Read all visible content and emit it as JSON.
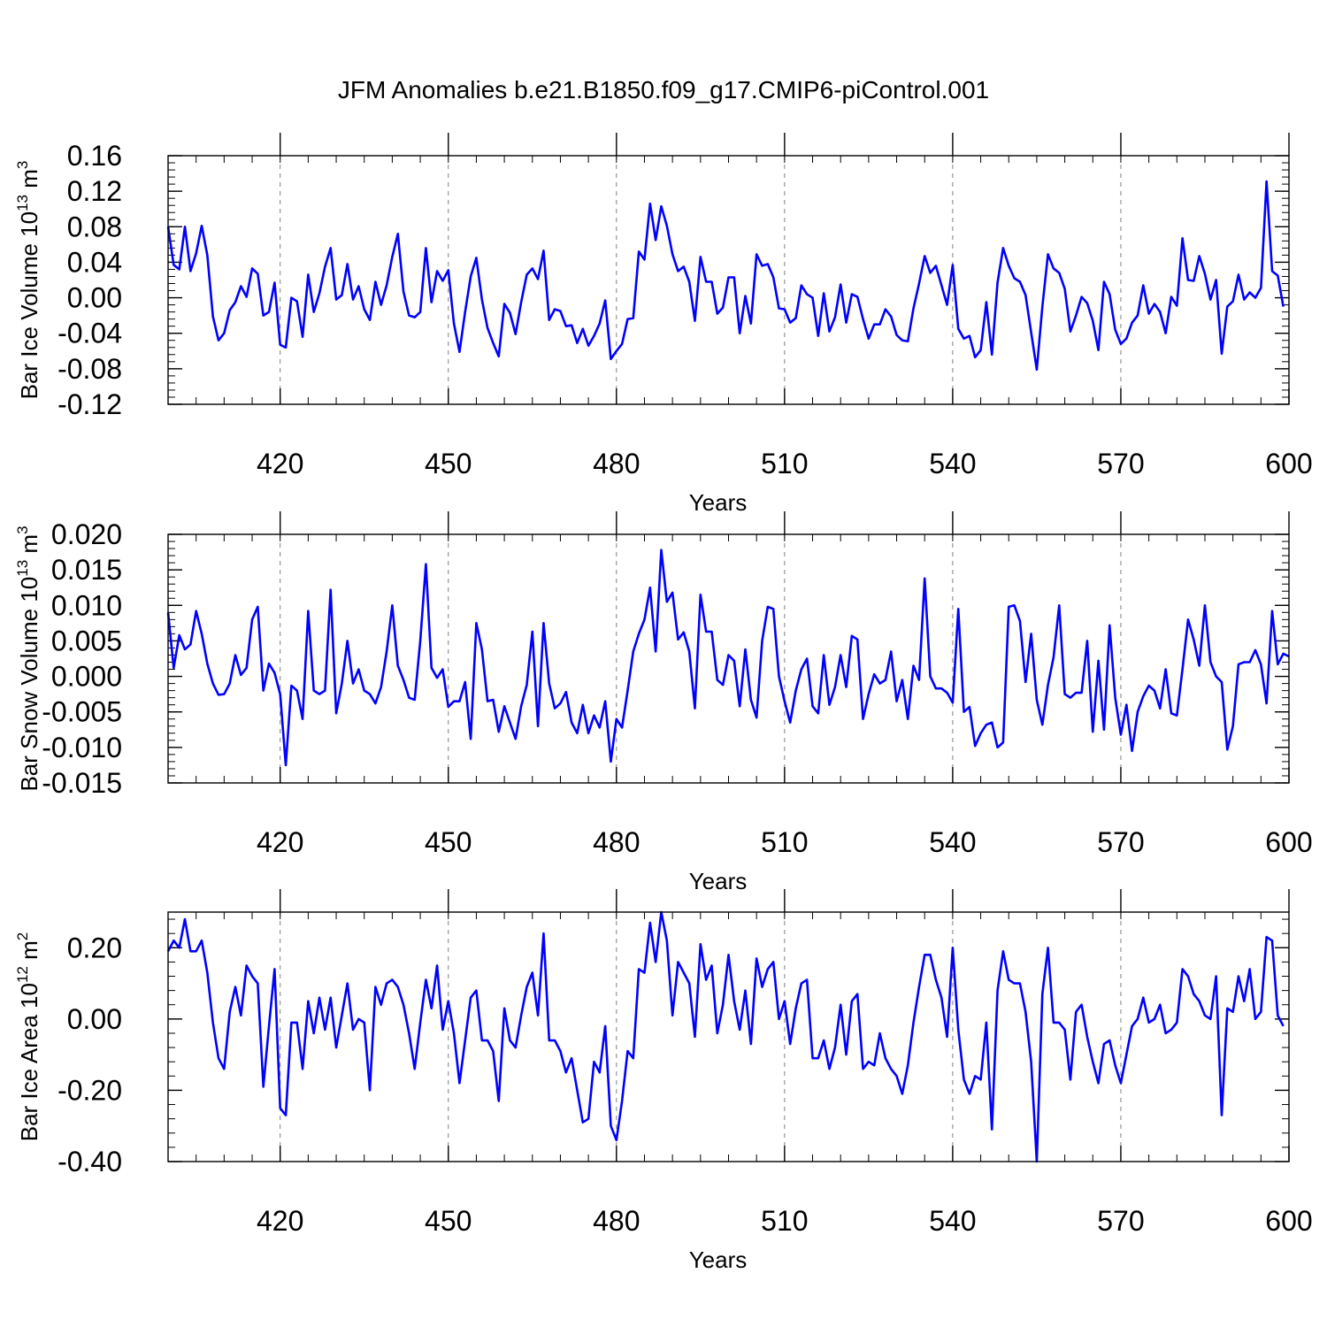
{
  "title": "JFM Anomalies b.e21.B1850.f09_g17.CMIP6-piControl.001",
  "colors": {
    "line": "#0000ff",
    "axis": "#000000",
    "grid": "#808080"
  },
  "chart_data": [
    {
      "type": "line",
      "ylabel_main": "Bar Ice Volume 10",
      "ylabel_exp": "13",
      "ylabel_unit": " m",
      "ylabel_unit_exp": "3",
      "xlabel": "Years",
      "xlim": [
        400,
        600
      ],
      "ylim": [
        -0.12,
        0.16
      ],
      "xticks": [
        420,
        450,
        480,
        510,
        540,
        570,
        600
      ],
      "xtick_labels": [
        "420",
        "450",
        "480",
        "510",
        "540",
        "570",
        "600"
      ],
      "yticks": [
        -0.12,
        -0.08,
        -0.04,
        0.0,
        0.04,
        0.08,
        0.12,
        0.16
      ],
      "ytick_labels": [
        "-0.12",
        "-0.08",
        "-0.04",
        "0.00",
        "0.04",
        "0.08",
        "0.12",
        "0.16"
      ],
      "grid": "vertical-dashed",
      "x_start": 400,
      "values": [
        0.08,
        0.037,
        0.032,
        0.08,
        0.03,
        0.05,
        0.081,
        0.048,
        -0.021,
        -0.048,
        -0.04,
        -0.014,
        -0.005,
        0.013,
        0.001,
        0.033,
        0.027,
        -0.02,
        -0.016,
        0.017,
        -0.053,
        -0.056,
        0.0,
        -0.004,
        -0.044,
        0.026,
        -0.016,
        0.005,
        0.035,
        0.056,
        -0.002,
        0.003,
        0.038,
        -0.002,
        0.013,
        -0.013,
        -0.025,
        0.018,
        -0.008,
        0.014,
        0.046,
        0.072,
        0.007,
        -0.02,
        -0.022,
        -0.016,
        0.056,
        -0.005,
        0.03,
        0.019,
        0.031,
        -0.029,
        -0.061,
        -0.016,
        0.024,
        0.045,
        -0.002,
        -0.034,
        -0.051,
        -0.066,
        -0.007,
        -0.017,
        -0.041,
        -0.005,
        0.026,
        0.033,
        0.021,
        0.053,
        -0.025,
        -0.013,
        -0.015,
        -0.032,
        -0.031,
        -0.051,
        -0.035,
        -0.054,
        -0.043,
        -0.029,
        -0.003,
        -0.069,
        -0.06,
        -0.052,
        -0.024,
        -0.023,
        0.052,
        0.043,
        0.106,
        0.065,
        0.103,
        0.081,
        0.049,
        0.03,
        0.035,
        0.018,
        -0.026,
        0.046,
        0.018,
        0.018,
        -0.018,
        -0.011,
        0.023,
        0.023,
        -0.04,
        0.002,
        -0.029,
        0.049,
        0.036,
        0.038,
        0.023,
        -0.012,
        -0.013,
        -0.028,
        -0.023,
        0.014,
        0.004,
        0.0,
        -0.043,
        0.005,
        -0.038,
        -0.022,
        0.015,
        -0.028,
        0.004,
        0.001,
        -0.024,
        -0.046,
        -0.03,
        -0.03,
        -0.013,
        -0.021,
        -0.042,
        -0.048,
        -0.049,
        -0.012,
        0.016,
        0.047,
        0.028,
        0.036,
        0.014,
        -0.008,
        0.037,
        -0.035,
        -0.046,
        -0.043,
        -0.067,
        -0.059,
        -0.005,
        -0.064,
        0.017,
        0.056,
        0.036,
        0.022,
        0.018,
        0.003,
        -0.039,
        -0.081,
        -0.01,
        0.049,
        0.033,
        0.028,
        0.01,
        -0.038,
        -0.02,
        0.001,
        -0.006,
        -0.026,
        -0.059,
        0.018,
        0.004,
        -0.036,
        -0.052,
        -0.046,
        -0.028,
        -0.02,
        0.014,
        -0.018,
        -0.007,
        -0.016,
        -0.04,
        0.001,
        -0.009,
        0.067,
        0.02,
        0.019,
        0.047,
        0.027,
        -0.002,
        0.02,
        -0.063,
        -0.01,
        -0.004,
        0.026,
        -0.002,
        0.006,
        0.0,
        0.011,
        0.131,
        0.03,
        0.025,
        -0.01
      ]
    },
    {
      "type": "line",
      "ylabel_main": "Bar Snow Volume 10",
      "ylabel_exp": "13",
      "ylabel_unit": " m",
      "ylabel_unit_exp": "3",
      "xlabel": "Years",
      "xlim": [
        400,
        600
      ],
      "ylim": [
        -0.015,
        0.02
      ],
      "xticks": [
        420,
        450,
        480,
        510,
        540,
        570,
        600
      ],
      "xtick_labels": [
        "420",
        "450",
        "480",
        "510",
        "540",
        "570",
        "600"
      ],
      "yticks": [
        -0.015,
        -0.01,
        -0.005,
        0.0,
        0.005,
        0.01,
        0.015,
        0.02
      ],
      "ytick_labels": [
        "-0.015",
        "-0.010",
        "-0.005",
        "0.000",
        "0.005",
        "0.010",
        "0.015",
        "0.020"
      ],
      "grid": "vertical-dashed",
      "x_start": 400,
      "values": [
        0.009,
        0.0012,
        0.0058,
        0.0038,
        0.0045,
        0.0092,
        0.006,
        0.0018,
        -0.001,
        -0.0026,
        -0.0025,
        -0.001,
        0.003,
        0.0002,
        0.0012,
        0.008,
        0.0098,
        -0.002,
        0.0018,
        0.0005,
        -0.0025,
        -0.0125,
        -0.0013,
        -0.002,
        -0.006,
        0.0092,
        -0.002,
        -0.0025,
        -0.002,
        0.0122,
        -0.0052,
        -0.001,
        0.005,
        -0.001,
        0.001,
        -0.002,
        -0.0025,
        -0.0038,
        -0.0015,
        0.0035,
        0.01,
        0.0015,
        -0.0005,
        -0.003,
        -0.0033,
        0.005,
        0.0158,
        0.0012,
        -0.0002,
        0.001,
        -0.0043,
        -0.0035,
        -0.0035,
        -0.0008,
        -0.0088,
        0.0075,
        0.0038,
        -0.0035,
        -0.0033,
        -0.0078,
        -0.0042,
        -0.0065,
        -0.0088,
        -0.0042,
        -0.0012,
        0.0063,
        -0.007,
        0.0075,
        -0.001,
        -0.0045,
        -0.0038,
        -0.0022,
        -0.0065,
        -0.008,
        -0.004,
        -0.008,
        -0.0055,
        -0.0072,
        -0.0035,
        -0.012,
        -0.006,
        -0.0072,
        -0.002,
        0.0035,
        0.006,
        0.008,
        0.0125,
        0.0035,
        0.0178,
        0.0105,
        0.0118,
        0.0052,
        0.0062,
        0.0035,
        -0.0045,
        0.0115,
        0.0063,
        0.0063,
        -0.0005,
        -0.0012,
        0.003,
        0.0022,
        -0.0042,
        0.0038,
        -0.0033,
        -0.0058,
        0.005,
        0.0098,
        0.0095,
        0.0,
        -0.0035,
        -0.0065,
        -0.002,
        0.001,
        0.0025,
        -0.0042,
        -0.0052,
        0.003,
        -0.004,
        -0.0015,
        0.003,
        -0.0015,
        0.0057,
        0.0052,
        -0.006,
        -0.0025,
        0.0003,
        -0.001,
        -0.0005,
        0.0035,
        -0.0035,
        -0.0005,
        -0.006,
        0.0015,
        -0.0005,
        0.0138,
        0.0,
        -0.0017,
        -0.0017,
        -0.0023,
        -0.0037,
        0.0095,
        -0.005,
        -0.0043,
        -0.0098,
        -0.008,
        -0.0068,
        -0.0065,
        -0.01,
        -0.0093,
        0.0098,
        0.01,
        0.0078,
        -0.0008,
        0.006,
        -0.0033,
        -0.0068,
        -0.0012,
        0.0027,
        0.01,
        -0.0025,
        -0.003,
        -0.0023,
        -0.0023,
        0.005,
        -0.0078,
        0.0022,
        -0.0075,
        0.0072,
        -0.003,
        -0.0082,
        -0.004,
        -0.0105,
        -0.005,
        -0.0028,
        -0.0013,
        -0.002,
        -0.0045,
        0.001,
        -0.0052,
        -0.0055,
        0.001,
        0.008,
        0.0052,
        0.0015,
        0.01,
        0.002,
        0.0,
        -0.0008,
        -0.0103,
        -0.007,
        0.0017,
        0.002,
        0.002,
        0.0037,
        0.0017,
        -0.0038,
        0.0092,
        0.0017,
        0.0032,
        0.0028
      ]
    },
    {
      "type": "line",
      "ylabel_main": "Bar Ice Area 10",
      "ylabel_exp": "12",
      "ylabel_unit": " m",
      "ylabel_unit_exp": "2",
      "xlabel": "Years",
      "xlim": [
        400,
        600
      ],
      "ylim": [
        -0.4,
        0.3
      ],
      "xticks": [
        420,
        450,
        480,
        510,
        540,
        570,
        600
      ],
      "xtick_labels": [
        "420",
        "450",
        "480",
        "510",
        "540",
        "570",
        "600"
      ],
      "yticks": [
        -0.4,
        -0.2,
        0.0,
        0.2
      ],
      "ytick_labels": [
        "-0.40",
        "-0.20",
        "0.00",
        "0.20"
      ],
      "grid": "vertical-dashed",
      "x_start": 400,
      "values": [
        0.19,
        0.22,
        0.2,
        0.28,
        0.19,
        0.19,
        0.22,
        0.13,
        -0.01,
        -0.11,
        -0.14,
        0.02,
        0.09,
        0.01,
        0.15,
        0.12,
        0.1,
        -0.19,
        -0.02,
        0.14,
        -0.25,
        -0.27,
        -0.01,
        -0.01,
        -0.14,
        0.05,
        -0.04,
        0.06,
        -0.03,
        0.06,
        -0.08,
        0.01,
        0.1,
        -0.03,
        0.0,
        -0.01,
        -0.2,
        0.09,
        0.04,
        0.1,
        0.11,
        0.09,
        0.04,
        -0.04,
        -0.14,
        -0.01,
        0.11,
        0.03,
        0.15,
        -0.03,
        0.05,
        -0.04,
        -0.18,
        -0.06,
        0.06,
        0.08,
        -0.06,
        -0.06,
        -0.09,
        -0.23,
        0.03,
        -0.06,
        -0.08,
        0.01,
        0.09,
        0.13,
        0.01,
        0.24,
        -0.06,
        -0.06,
        -0.09,
        -0.15,
        -0.11,
        -0.2,
        -0.29,
        -0.28,
        -0.12,
        -0.15,
        -0.02,
        -0.3,
        -0.34,
        -0.23,
        -0.09,
        -0.11,
        0.14,
        0.13,
        0.27,
        0.16,
        0.3,
        0.22,
        0.01,
        0.16,
        0.13,
        0.1,
        -0.05,
        0.21,
        0.11,
        0.15,
        -0.04,
        0.04,
        0.18,
        0.05,
        -0.03,
        0.08,
        -0.07,
        0.17,
        0.09,
        0.14,
        0.16,
        0.0,
        0.05,
        -0.07,
        0.03,
        0.1,
        0.11,
        -0.11,
        -0.11,
        -0.06,
        -0.14,
        -0.08,
        0.04,
        -0.1,
        0.05,
        0.07,
        -0.14,
        -0.12,
        -0.13,
        -0.04,
        -0.11,
        -0.14,
        -0.16,
        -0.21,
        -0.13,
        -0.01,
        0.09,
        0.18,
        0.18,
        0.11,
        0.06,
        -0.05,
        0.2,
        -0.03,
        -0.17,
        -0.21,
        -0.16,
        -0.17,
        -0.01,
        -0.31,
        0.08,
        0.19,
        0.11,
        0.1,
        0.1,
        0.02,
        -0.12,
        -0.4,
        0.07,
        0.2,
        -0.01,
        -0.01,
        -0.03,
        -0.17,
        0.02,
        0.04,
        -0.05,
        -0.12,
        -0.18,
        -0.07,
        -0.06,
        -0.13,
        -0.18,
        -0.1,
        -0.02,
        0.0,
        0.06,
        -0.01,
        0.0,
        0.04,
        -0.04,
        -0.03,
        -0.01,
        0.14,
        0.12,
        0.07,
        0.05,
        0.01,
        0.0,
        0.12,
        -0.27,
        0.03,
        0.02,
        0.12,
        0.05,
        0.14,
        0.0,
        0.02,
        0.23,
        0.22,
        0.01,
        -0.02
      ]
    }
  ]
}
